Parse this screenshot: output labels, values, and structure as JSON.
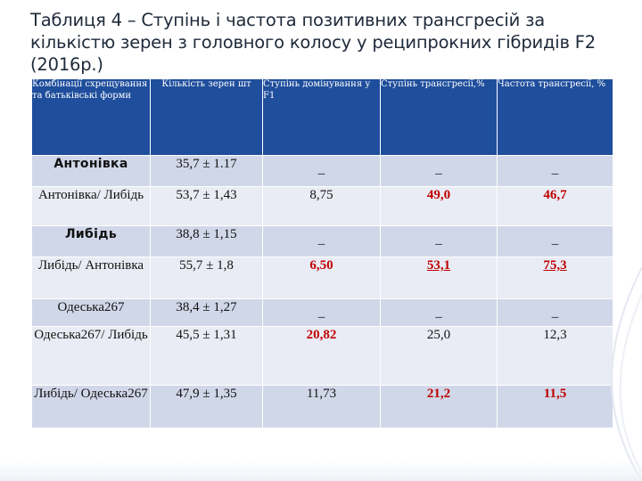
{
  "title": "Таблиця 4 – Ступінь і частота позитивних трансгресій за кількістю зерен з головного колосу у реципрокних гібридів F2 (2016р.)",
  "headers": [
    "Комбінації схрещування та батьківські форми",
    "Кількість зерен шт",
    "Ступінь домінування у F1",
    "Ступінь трансгресії,%",
    "Частота трансгресії, %"
  ],
  "rows": [
    {
      "name": "Антонівка",
      "grain": "35,7 ± 1.17",
      "dom": "_",
      "deg": "_",
      "freq": "_"
    },
    {
      "name": "Антонівка/ Либідь",
      "grain": "53,7 ± 1,43",
      "dom": "8,75",
      "deg": "49,0",
      "freq": "46,7"
    },
    {
      "name": "Либідь",
      "grain": "38,8 ± 1,15",
      "dom": "_",
      "deg": "_",
      "freq": "_"
    },
    {
      "name": "Либідь/ Антонівка",
      "grain": "55,7 ± 1,8",
      "dom": "6,50",
      "deg": "53,1",
      "freq": "75,3"
    },
    {
      "name": "Одеська267",
      "grain": "38,4 ± 1,27",
      "dom": "_",
      "deg": "_",
      "freq": "_"
    },
    {
      "name": "Одеська267/ Либідь",
      "grain": "45,5 ± 1,31",
      "dom": "20,82",
      "deg": "25,0",
      "freq": "12,3"
    },
    {
      "name": "Либідь/ Одеська267",
      "grain": "47,9 ± 1,35",
      "dom": "11,73",
      "deg": "21,2",
      "freq": "11,5"
    }
  ],
  "colors": {
    "header_bg": "#1f4e9c",
    "row_dark": "#d0d7e8",
    "row_light": "#e9ecf4",
    "highlight": "#c00000"
  }
}
